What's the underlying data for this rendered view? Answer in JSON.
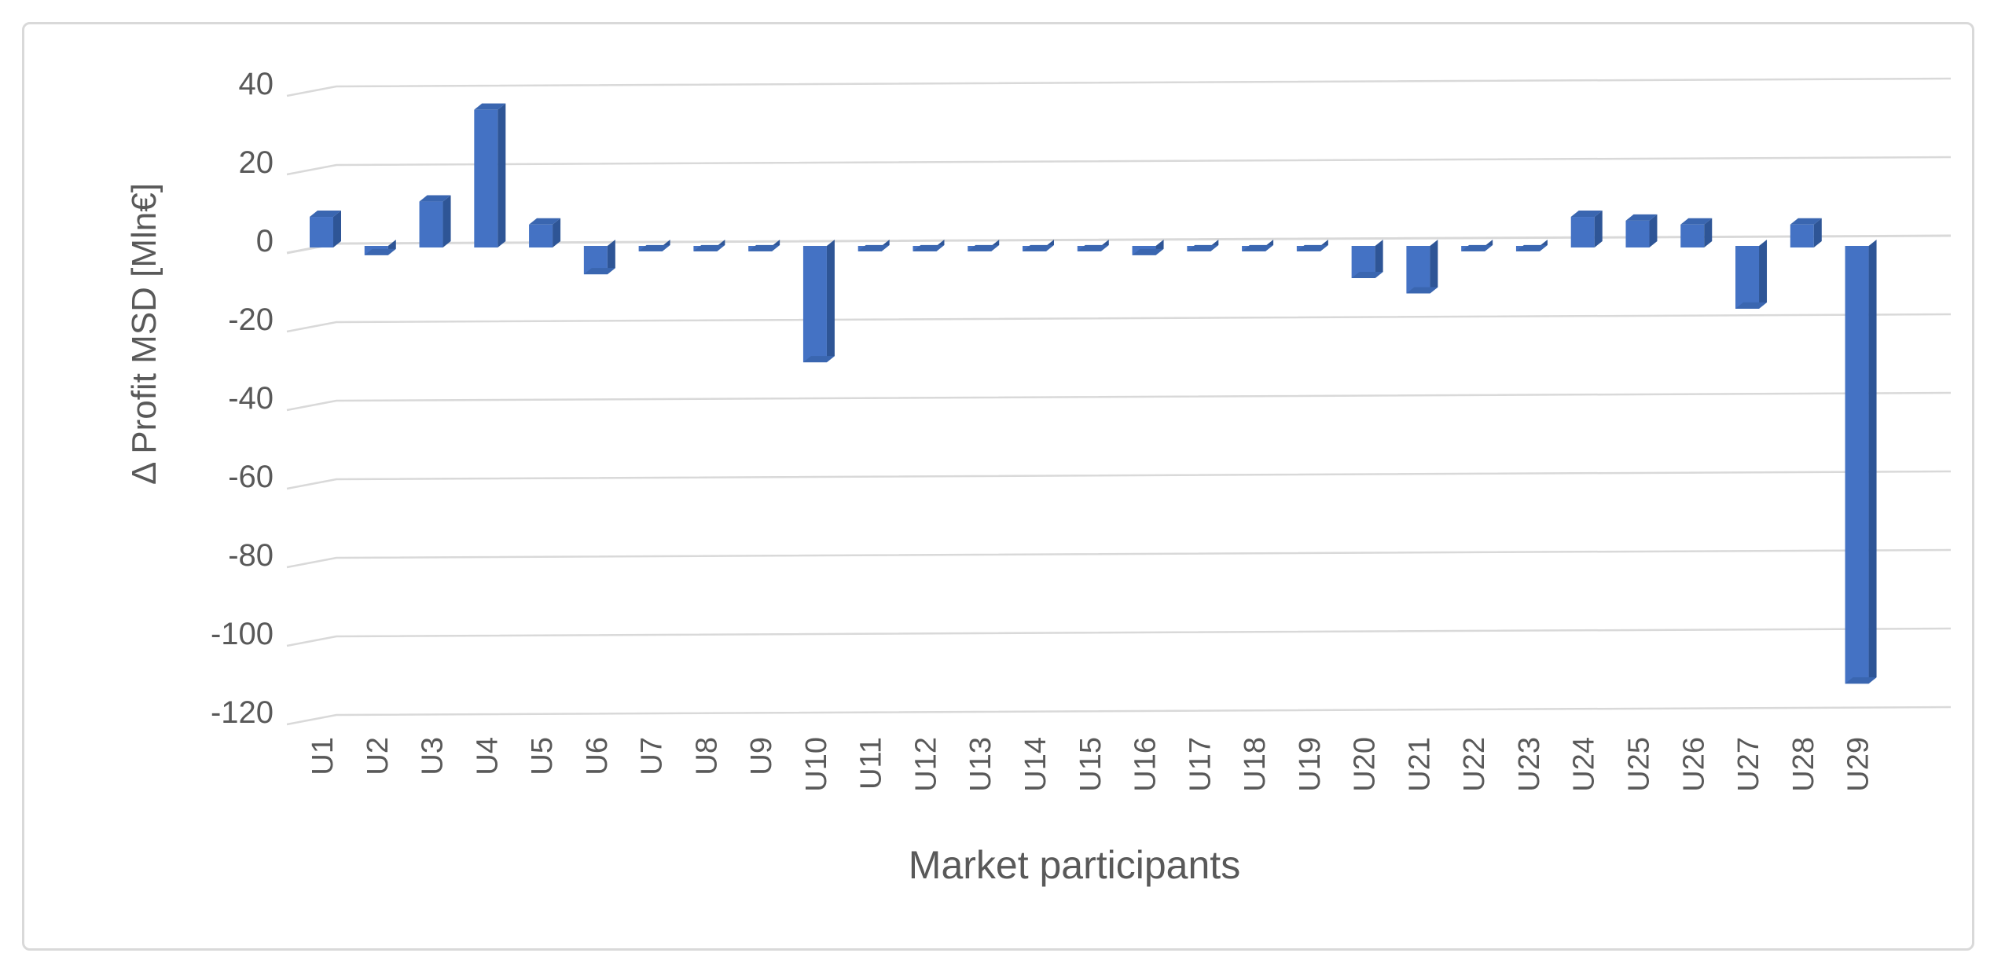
{
  "chart_data": {
    "type": "bar",
    "style": "excel-3d-column",
    "title": "",
    "categories": [
      "U1",
      "U2",
      "U3",
      "U4",
      "U5",
      "U6",
      "U7",
      "U8",
      "U9",
      "U10",
      "U11",
      "U12",
      "U13",
      "U14",
      "U15",
      "U16",
      "U17",
      "U18",
      "U19",
      "U20",
      "U21",
      "U22",
      "U23",
      "U24",
      "U25",
      "U26",
      "U27",
      "U28",
      "U29"
    ],
    "values": [
      8,
      -2,
      12,
      36,
      6,
      -7,
      -1,
      -1,
      -1,
      -30,
      -1,
      -1,
      -1,
      -1,
      -1,
      -2,
      -1,
      -1,
      -1,
      -8,
      -12,
      -1,
      -1,
      8,
      7,
      6,
      -16,
      6,
      -114
    ],
    "xlabel": "Market participants",
    "ylabel": "Δ Profit MSD [Mln€]",
    "ylim": [
      -120,
      40
    ],
    "yticks": [
      40,
      20,
      0,
      -20,
      -40,
      -60,
      -80,
      -100,
      -120
    ],
    "grid": true,
    "legend": "none",
    "colors": {
      "bar_front": "#4472C4",
      "bar_side": "#2E5596",
      "bar_cap": "#3A66B0",
      "gridline": "#D9D9D9",
      "text": "#595959",
      "frame_border": "#D9D9D9",
      "background": "#FFFFFF"
    }
  }
}
